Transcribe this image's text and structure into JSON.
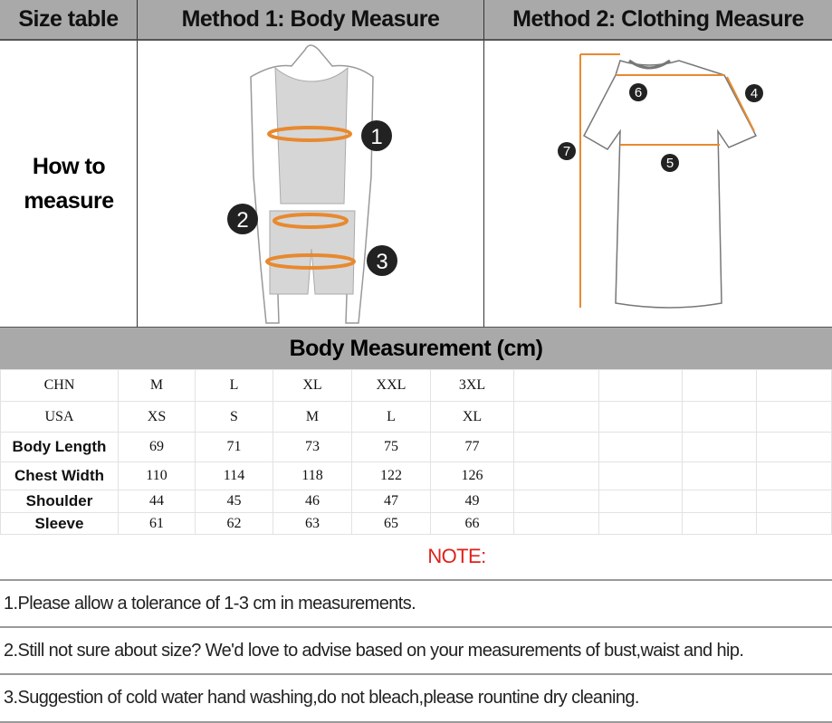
{
  "header": {
    "size_table": "Size table",
    "method1": "Method 1: Body  Measure",
    "method2": "Method 2: Clothing Measure"
  },
  "how_to_measure": [
    "How to",
    "measure"
  ],
  "body_markers": [
    "1",
    "2",
    "3"
  ],
  "clothing_markers": [
    "4",
    "5",
    "6",
    "7"
  ],
  "accent_color": "#e8892f",
  "section_title": "Body Measurement (cm)",
  "table": {
    "rows": [
      {
        "label": "CHN",
        "values": [
          "M",
          "L",
          "XL",
          "XXL",
          "3XL"
        ]
      },
      {
        "label": "USA",
        "values": [
          "XS",
          "S",
          "M",
          "L",
          "XL"
        ]
      },
      {
        "label": "Body Length",
        "values": [
          "69",
          "71",
          "73",
          "75",
          "77"
        ]
      },
      {
        "label": "Chest Width",
        "values": [
          "110",
          "114",
          "118",
          "122",
          "126"
        ]
      },
      {
        "label": "Shoulder",
        "values": [
          "44",
          "45",
          "46",
          "47",
          "49"
        ]
      },
      {
        "label": "Sleeve",
        "values": [
          "61",
          "62",
          "63",
          "65",
          "66"
        ]
      }
    ]
  },
  "notes": {
    "title": "NOTE:",
    "items": [
      "1.Please allow a tolerance of 1-3 cm in measurements.",
      "2.Still not sure about size? We'd love to advise based on your measurements of bust,waist and hip.",
      "3.Suggestion of cold water hand washing,do not bleach,please rountine dry cleaning."
    ]
  }
}
